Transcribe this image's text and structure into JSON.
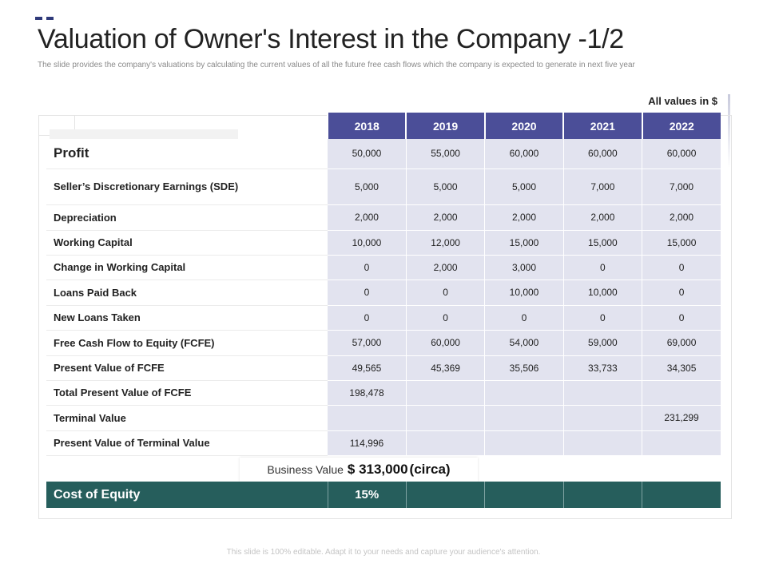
{
  "title": "Valuation of Owner's Interest in the Company -1/2",
  "subtitle": "The slide provides the company's valuations by calculating the current values of all the future free cash flows which the company is expected to generate in next five year",
  "units_note": "All values in $",
  "years": [
    "2018",
    "2019",
    "2020",
    "2021",
    "2022"
  ],
  "rows": [
    {
      "label": "Profit",
      "values": [
        "50,000",
        "55,000",
        "60,000",
        "60,000",
        "60,000"
      ]
    },
    {
      "label": "Seller’s Discretionary Earnings (SDE)",
      "values": [
        "5,000",
        "5,000",
        "5,000",
        "7,000",
        "7,000"
      ]
    },
    {
      "label": "Depreciation",
      "values": [
        "2,000",
        "2,000",
        "2,000",
        "2,000",
        "2,000"
      ]
    },
    {
      "label": "Working Capital",
      "values": [
        "10,000",
        "12,000",
        "15,000",
        "15,000",
        "15,000"
      ]
    },
    {
      "label": "Change in Working Capital",
      "values": [
        "0",
        "2,000",
        "3,000",
        "0",
        "0"
      ]
    },
    {
      "label": "Loans Paid Back",
      "values": [
        "0",
        "0",
        "10,000",
        "10,000",
        "0"
      ]
    },
    {
      "label": "New Loans Taken",
      "values": [
        "0",
        "0",
        "0",
        "0",
        "0"
      ]
    },
    {
      "label": "Free Cash Flow to Equity (FCFE)",
      "values": [
        "57,000",
        "60,000",
        "54,000",
        "59,000",
        "69,000"
      ]
    },
    {
      "label": "Present Value of FCFE",
      "values": [
        "49,565",
        "45,369",
        "35,506",
        "33,733",
        "34,305"
      ]
    },
    {
      "label": "Total Present Value of FCFE",
      "values": [
        "198,478",
        "",
        "",
        "",
        ""
      ]
    },
    {
      "label": "Terminal Value",
      "values": [
        "",
        "",
        "",
        "",
        "231,299"
      ]
    },
    {
      "label": "Present Value of Terminal Value",
      "values": [
        "114,996",
        "",
        "",
        "",
        ""
      ]
    }
  ],
  "business_value": {
    "label": "Business Value",
    "amount": "$ 313,000",
    "suffix": "(circa)"
  },
  "cost_of_equity": {
    "label": "Cost of Equity",
    "value": "15%"
  },
  "footer": "This slide is 100% editable. Adapt it to your needs and capture your audience's attention.",
  "colors": {
    "header": "#4b4e98",
    "cell": "#e2e3ef",
    "equity_row": "#265e5c"
  }
}
